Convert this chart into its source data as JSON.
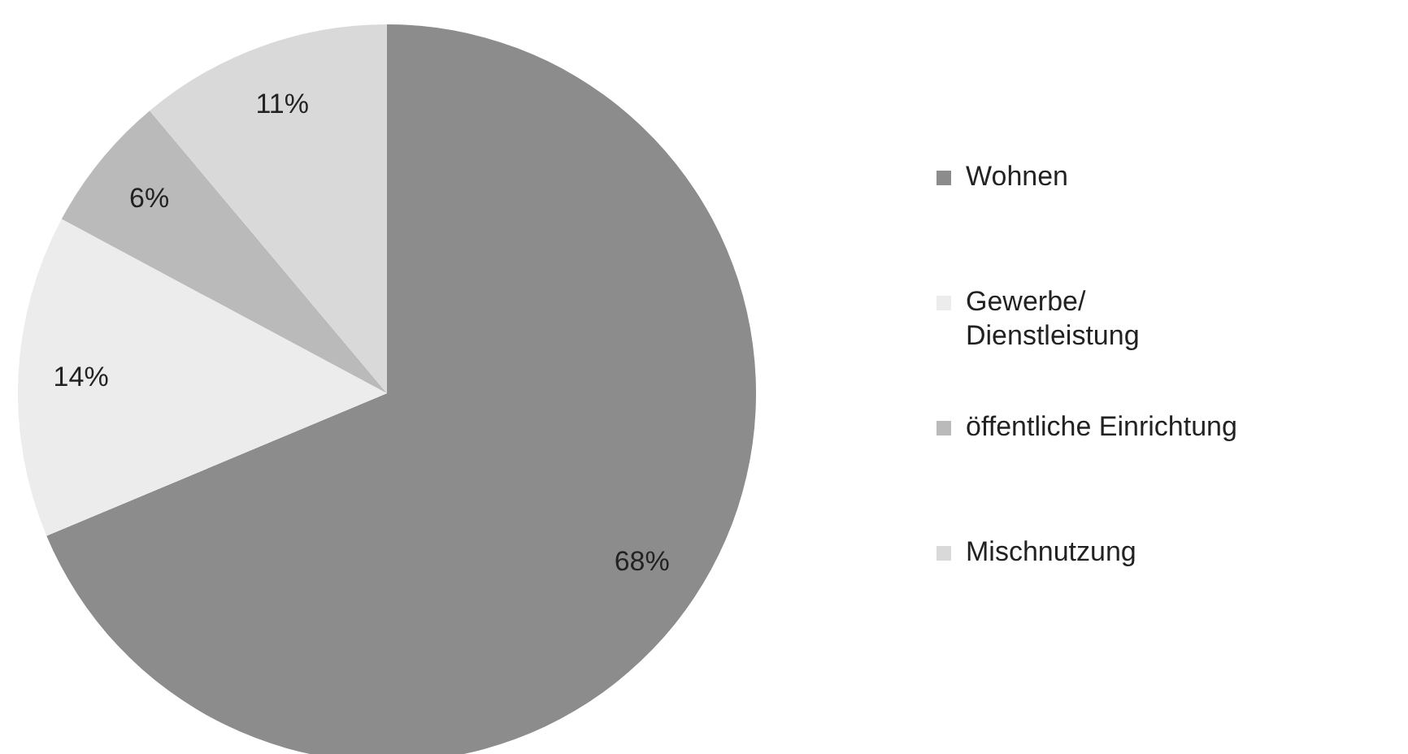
{
  "chart_data": {
    "type": "pie",
    "categories": [
      "Wohnen",
      "Gewerbe/ Dienstleistung",
      "öffentliche Einrichtung",
      "Mischnutzung"
    ],
    "values": [
      68,
      14,
      6,
      11
    ],
    "colors": [
      "#8c8c8c",
      "#ececec",
      "#bababa",
      "#d9d9d9"
    ],
    "value_labels": [
      "68%",
      "14%",
      "6%",
      "11%"
    ],
    "legend": "right"
  }
}
